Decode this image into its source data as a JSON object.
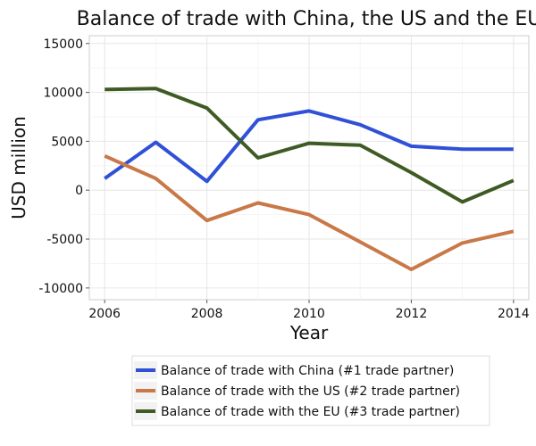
{
  "chart_data": {
    "type": "line",
    "title": "Balance of trade with China, the US and the EU",
    "xlabel": "Year",
    "ylabel": "USD million",
    "x": [
      2006,
      2007,
      2008,
      2009,
      2010,
      2011,
      2012,
      2013,
      2014
    ],
    "xlim": [
      2005.7,
      2014.3
    ],
    "ylim": [
      -11200,
      15800
    ],
    "x_ticks": [
      2006,
      2008,
      2010,
      2012,
      2014
    ],
    "y_ticks": [
      -10000,
      -5000,
      0,
      5000,
      10000,
      15000
    ],
    "grid": true,
    "legend_position": "bottom",
    "series": [
      {
        "name": "Balance of trade with China (#1 trade partner)",
        "color": "#3050d8",
        "values": [
          1200,
          4900,
          900,
          7200,
          8100,
          6700,
          4500,
          4200,
          4200
        ]
      },
      {
        "name": "Balance of trade with the US (#2 trade partner)",
        "color": "#c97848",
        "values": [
          3500,
          1200,
          -3100,
          -1300,
          -2500,
          -5300,
          -8100,
          -5400,
          -4200
        ]
      },
      {
        "name": "Balance of trade with the EU (#3 trade partner)",
        "color": "#3f5b24",
        "values": [
          10300,
          10400,
          8400,
          3300,
          4800,
          4600,
          1800,
          -1200,
          1000
        ]
      }
    ]
  }
}
